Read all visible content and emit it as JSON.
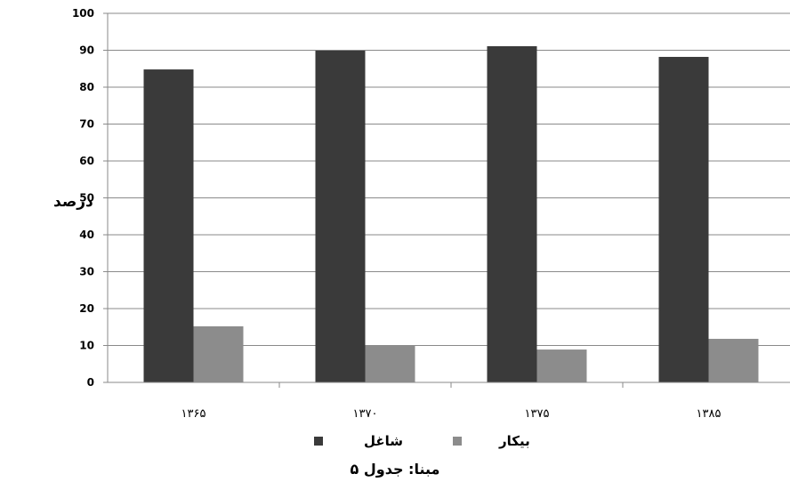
{
  "chart_data": {
    "type": "bar",
    "categories": [
      "۱۳۶۵",
      "۱۳۷۰",
      "۱۳۷۵",
      "۱۳۸۵"
    ],
    "series": [
      {
        "name": "شاغل",
        "values": [
          84.8,
          89.9,
          91.1,
          88.2
        ],
        "color": "#3a3a3a"
      },
      {
        "name": "بیکار",
        "values": [
          15.2,
          10.1,
          8.9,
          11.8
        ],
        "color": "#8c8c8c"
      }
    ],
    "ylabel": "درصد",
    "ylim": [
      0,
      100
    ],
    "yticks": [
      0,
      10,
      20,
      30,
      40,
      50,
      60,
      70,
      80,
      90,
      100
    ],
    "grid": true,
    "legend_position": "bottom",
    "source_note": "مبنا: جدول ۵"
  }
}
